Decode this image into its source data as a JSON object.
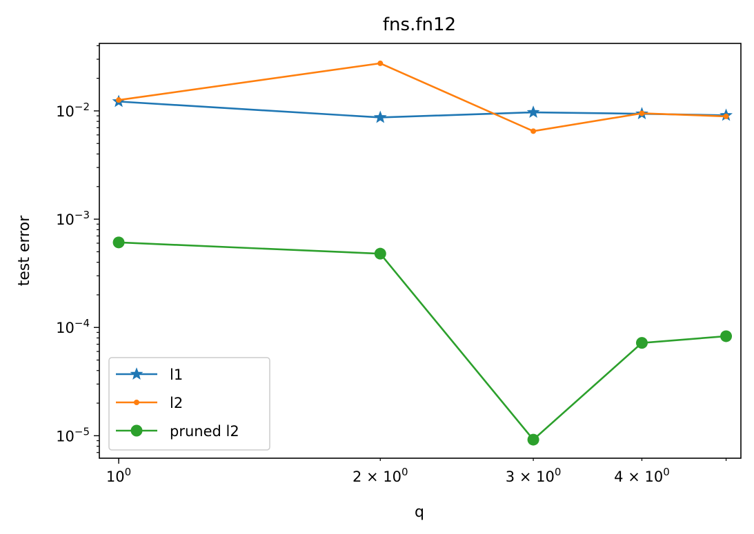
{
  "chart_data": {
    "type": "line",
    "title": "fns.fn12",
    "xlabel": "q",
    "ylabel": "test error",
    "xscale": "log",
    "yscale": "log",
    "xlim": [
      0.95,
      5.2
    ],
    "ylim": [
      6.2e-06,
      0.042
    ],
    "grid": false,
    "legend_position": "lower-left",
    "x": [
      1,
      2,
      3,
      4,
      5
    ],
    "x_ticks": [
      {
        "value": 1,
        "base": "10",
        "mult": "",
        "exp": "0"
      },
      {
        "value": 2,
        "base": "10",
        "mult": "2 × ",
        "exp": "0"
      },
      {
        "value": 3,
        "base": "10",
        "mult": "3 × ",
        "exp": "0"
      },
      {
        "value": 4,
        "base": "10",
        "mult": "4 × ",
        "exp": "0"
      }
    ],
    "y_ticks": [
      {
        "value": 0.01,
        "base": "10",
        "exp": "−2"
      },
      {
        "value": 0.001,
        "base": "10",
        "exp": "−3"
      },
      {
        "value": 0.0001,
        "base": "10",
        "exp": "−4"
      },
      {
        "value": 1e-05,
        "base": "10",
        "exp": "−5"
      }
    ],
    "series": [
      {
        "name": "l1",
        "color": "#1f77b4",
        "marker": "star",
        "values": [
          0.0122,
          0.0087,
          0.0097,
          0.0094,
          0.0091
        ]
      },
      {
        "name": "l2",
        "color": "#ff7f0e",
        "marker": "point",
        "values": [
          0.0126,
          0.0275,
          0.0065,
          0.0095,
          0.0089
        ]
      },
      {
        "name": "pruned l2",
        "color": "#2ca02c",
        "marker": "circle",
        "values": [
          0.00061,
          0.00048,
          9.2e-06,
          7.2e-05,
          8.3e-05
        ]
      }
    ]
  }
}
